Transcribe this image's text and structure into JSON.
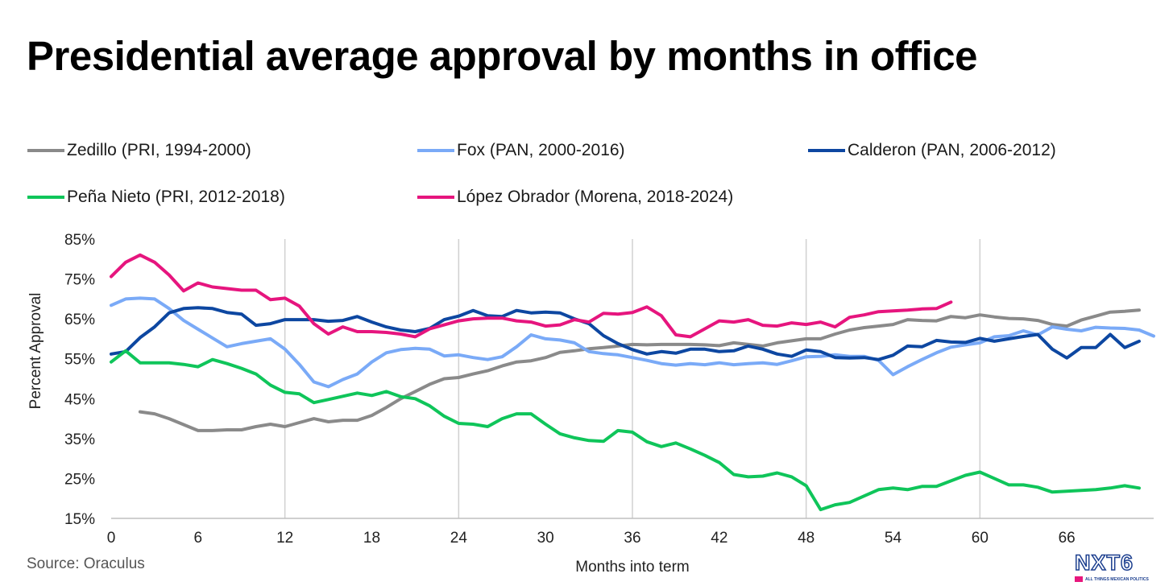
{
  "source": "Source: Oraculus",
  "logo": {
    "text": "NXT6",
    "tagline": "ALL THINGS MEXICAN POLITICS"
  },
  "colors": {
    "zedillo": "#8a8a8a",
    "fox": "#7aaaf7",
    "calderon": "#0d47a1",
    "pena": "#0fc55a",
    "amlo": "#e6157e",
    "grid": "#d0d0d0",
    "axis": "#bfbfbf"
  },
  "chart_data": {
    "type": "line",
    "title": "Presidential average approval by months in office",
    "xlabel": "Months into term",
    "ylabel": "Percent Approval",
    "xlim": [
      0,
      72
    ],
    "ylim": [
      15,
      85
    ],
    "xticks": [
      0,
      6,
      12,
      18,
      24,
      30,
      36,
      42,
      48,
      54,
      60,
      66
    ],
    "yticks": [
      "15%",
      "25%",
      "35%",
      "45%",
      "55%",
      "65%",
      "75%",
      "85%"
    ],
    "grid": "vertical every 12 months",
    "legend_position": "top",
    "series": [
      {
        "name": "Zedillo (PRI, 1994-2000)",
        "color": "#8a8a8a",
        "x_start": 2,
        "values": [
          41.7,
          41.2,
          40.0,
          38.5,
          37.0,
          37.0,
          37.2,
          37.2,
          38.0,
          38.6,
          38.0,
          39.0,
          40.0,
          39.2,
          39.6,
          39.6,
          40.8,
          42.8,
          45.0,
          46.8,
          48.6,
          50.0,
          50.3,
          51.2,
          52.0,
          53.2,
          54.2,
          54.5,
          55.3,
          56.6,
          57.0,
          57.5,
          57.8,
          58.2,
          58.6,
          58.5,
          58.6,
          58.6,
          58.6,
          58.5,
          58.3,
          59.0,
          58.6,
          58.2,
          59.0,
          59.5,
          60.0,
          60.0,
          61.2,
          62.2,
          62.8,
          63.2,
          63.6,
          64.8,
          64.6,
          64.5,
          65.6,
          65.3,
          66.0,
          65.5,
          65.1,
          65.0,
          64.6,
          63.6,
          63.2,
          64.7,
          65.7,
          66.7,
          66.9,
          67.2
        ]
      },
      {
        "name": "Fox (PAN, 2000-2016)",
        "color": "#7aaaf7",
        "x_start": 0,
        "values": [
          68.4,
          70.0,
          70.2,
          70.0,
          67.6,
          64.6,
          62.4,
          60.2,
          58.0,
          58.8,
          59.4,
          60.0,
          57.4,
          53.6,
          49.2,
          48.0,
          49.8,
          51.2,
          54.2,
          56.5,
          57.3,
          57.6,
          57.4,
          55.7,
          56.0,
          55.3,
          54.8,
          55.5,
          58.0,
          61.0,
          60.0,
          59.7,
          59.0,
          56.8,
          56.3,
          56.0,
          55.3,
          54.6,
          53.8,
          53.4,
          53.8,
          53.5,
          54.0,
          53.5,
          53.8,
          54.0,
          53.6,
          54.5,
          55.5,
          55.6,
          56.0,
          55.6,
          55.6,
          54.6,
          51.0,
          53.0,
          54.8,
          56.5,
          57.9,
          58.5,
          59.0,
          60.5,
          60.8,
          62.0,
          61.0,
          63.0,
          62.4,
          62.0,
          62.9,
          62.7,
          62.6,
          62.2,
          60.7
        ]
      },
      {
        "name": "Calderon (PAN, 2006-2012)",
        "color": "#0d47a1",
        "x_start": 0,
        "values": [
          56.2,
          56.8,
          60.3,
          63.0,
          66.5,
          67.6,
          67.8,
          67.6,
          66.6,
          66.2,
          63.4,
          63.8,
          64.8,
          64.8,
          64.8,
          64.4,
          64.6,
          65.6,
          64.2,
          63.0,
          62.2,
          61.8,
          62.6,
          64.8,
          65.7,
          67.1,
          65.8,
          65.6,
          67.1,
          66.5,
          66.7,
          66.5,
          65.0,
          63.8,
          60.8,
          58.8,
          57.3,
          56.2,
          56.8,
          56.4,
          57.4,
          57.4,
          56.8,
          57.0,
          58.2,
          57.4,
          56.2,
          55.6,
          57.2,
          56.8,
          55.3,
          55.2,
          55.3,
          54.8,
          55.9,
          58.2,
          58.0,
          59.6,
          59.2,
          59.1,
          60.1,
          59.4,
          60.0,
          60.6,
          61.1,
          57.4,
          55.2,
          57.8,
          57.8,
          61.1,
          57.8,
          59.4
        ]
      },
      {
        "name": "Peña Nieto (PRI, 2012-2018)",
        "color": "#0fc55a",
        "x_start": 0,
        "values": [
          54.2,
          57.0,
          54.0,
          54.0,
          54.0,
          53.6,
          53.0,
          54.8,
          53.8,
          52.6,
          51.2,
          48.4,
          46.6,
          46.2,
          44.0,
          44.8,
          45.6,
          46.4,
          45.8,
          46.8,
          45.5,
          45.0,
          43.2,
          40.6,
          38.8,
          38.6,
          38.0,
          40.0,
          41.2,
          41.2,
          38.6,
          36.2,
          35.2,
          34.5,
          34.3,
          37.0,
          36.6,
          34.2,
          33.0,
          33.9,
          32.4,
          30.8,
          29.0,
          26.0,
          25.4,
          25.6,
          26.4,
          25.4,
          23.2,
          17.2,
          18.4,
          19.0,
          20.6,
          22.2,
          22.6,
          22.2,
          23.0,
          23.0,
          24.4,
          25.8,
          26.6,
          25.0,
          23.4,
          23.4,
          22.8,
          21.6,
          21.8,
          22.0,
          22.2,
          22.6,
          23.2,
          22.6
        ]
      },
      {
        "name": "López Obrador (Morena, 2018-2024)",
        "color": "#e6157e",
        "x_start": 0,
        "values": [
          75.6,
          79.2,
          81.0,
          79.2,
          76.0,
          72.0,
          74.0,
          73.0,
          72.6,
          72.2,
          72.2,
          69.8,
          70.2,
          68.2,
          63.8,
          61.2,
          63.0,
          61.8,
          61.8,
          61.6,
          61.2,
          60.5,
          62.5,
          63.5,
          64.5,
          65.0,
          65.2,
          65.2,
          64.5,
          64.2,
          63.2,
          63.5,
          64.8,
          64.2,
          66.4,
          66.2,
          66.6,
          68.0,
          65.8,
          61.0,
          60.5,
          62.5,
          64.5,
          64.2,
          64.8,
          63.4,
          63.2,
          64.0,
          63.6,
          64.2,
          63.0,
          65.4,
          66.0,
          66.8,
          67.0,
          67.2,
          67.5,
          67.6,
          69.2
        ]
      }
    ]
  }
}
